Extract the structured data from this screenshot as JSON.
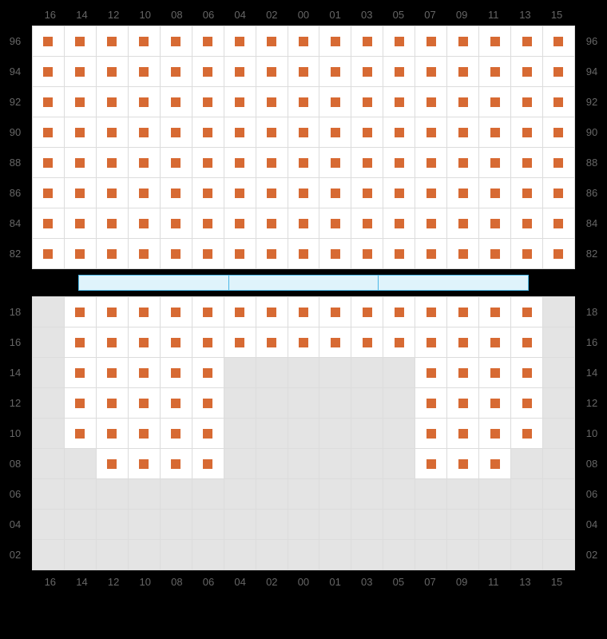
{
  "layout": {
    "columns": [
      "16",
      "14",
      "12",
      "10",
      "08",
      "06",
      "04",
      "02",
      "00",
      "01",
      "03",
      "05",
      "07",
      "09",
      "11",
      "13",
      "15"
    ],
    "seat_color": "#d76a33",
    "empty_bg": "#e4e4e4",
    "grid_border": "#dcdcdc",
    "stage_border": "#4bb7e6",
    "stage_fill": "#dff3fb",
    "label_color": "#666666"
  },
  "top": {
    "rows": [
      {
        "label": "96",
        "seats": [
          1,
          1,
          1,
          1,
          1,
          1,
          1,
          1,
          1,
          1,
          1,
          1,
          1,
          1,
          1,
          1,
          1
        ]
      },
      {
        "label": "94",
        "seats": [
          1,
          1,
          1,
          1,
          1,
          1,
          1,
          1,
          1,
          1,
          1,
          1,
          1,
          1,
          1,
          1,
          1
        ]
      },
      {
        "label": "92",
        "seats": [
          1,
          1,
          1,
          1,
          1,
          1,
          1,
          1,
          1,
          1,
          1,
          1,
          1,
          1,
          1,
          1,
          1
        ]
      },
      {
        "label": "90",
        "seats": [
          1,
          1,
          1,
          1,
          1,
          1,
          1,
          1,
          1,
          1,
          1,
          1,
          1,
          1,
          1,
          1,
          1
        ]
      },
      {
        "label": "88",
        "seats": [
          1,
          1,
          1,
          1,
          1,
          1,
          1,
          1,
          1,
          1,
          1,
          1,
          1,
          1,
          1,
          1,
          1
        ]
      },
      {
        "label": "86",
        "seats": [
          1,
          1,
          1,
          1,
          1,
          1,
          1,
          1,
          1,
          1,
          1,
          1,
          1,
          1,
          1,
          1,
          1
        ]
      },
      {
        "label": "84",
        "seats": [
          1,
          1,
          1,
          1,
          1,
          1,
          1,
          1,
          1,
          1,
          1,
          1,
          1,
          1,
          1,
          1,
          1
        ]
      },
      {
        "label": "82",
        "seats": [
          1,
          1,
          1,
          1,
          1,
          1,
          1,
          1,
          1,
          1,
          1,
          1,
          1,
          1,
          1,
          1,
          1
        ]
      }
    ]
  },
  "bottom": {
    "rows": [
      {
        "label": "18",
        "seats": [
          0,
          1,
          1,
          1,
          1,
          1,
          1,
          1,
          1,
          1,
          1,
          1,
          1,
          1,
          1,
          1,
          0
        ]
      },
      {
        "label": "16",
        "seats": [
          0,
          1,
          1,
          1,
          1,
          1,
          1,
          1,
          1,
          1,
          1,
          1,
          1,
          1,
          1,
          1,
          0
        ]
      },
      {
        "label": "14",
        "seats": [
          0,
          1,
          1,
          1,
          1,
          1,
          0,
          0,
          0,
          0,
          0,
          0,
          1,
          1,
          1,
          1,
          0
        ]
      },
      {
        "label": "12",
        "seats": [
          0,
          1,
          1,
          1,
          1,
          1,
          0,
          0,
          0,
          0,
          0,
          0,
          1,
          1,
          1,
          1,
          0
        ]
      },
      {
        "label": "10",
        "seats": [
          0,
          1,
          1,
          1,
          1,
          1,
          0,
          0,
          0,
          0,
          0,
          0,
          1,
          1,
          1,
          1,
          0
        ]
      },
      {
        "label": "08",
        "seats": [
          0,
          0,
          1,
          1,
          1,
          1,
          0,
          0,
          0,
          0,
          0,
          0,
          1,
          1,
          1,
          0,
          0
        ]
      },
      {
        "label": "06",
        "seats": [
          0,
          0,
          0,
          0,
          0,
          0,
          0,
          0,
          0,
          0,
          0,
          0,
          0,
          0,
          0,
          0,
          0
        ]
      },
      {
        "label": "04",
        "seats": [
          0,
          0,
          0,
          0,
          0,
          0,
          0,
          0,
          0,
          0,
          0,
          0,
          0,
          0,
          0,
          0,
          0
        ]
      },
      {
        "label": "02",
        "seats": [
          0,
          0,
          0,
          0,
          0,
          0,
          0,
          0,
          0,
          0,
          0,
          0,
          0,
          0,
          0,
          0,
          0
        ]
      }
    ]
  }
}
